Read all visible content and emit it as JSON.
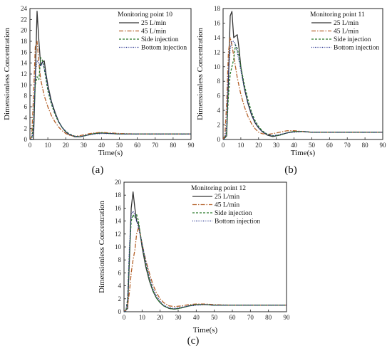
{
  "chart_data": [
    {
      "type": "line",
      "panel_label": "(a)",
      "legend_title": "Monitoring point 10",
      "xlabel": "Time(s)",
      "ylabel": "Dimensionless Concentration",
      "xlim": [
        0,
        90
      ],
      "ylim": [
        0,
        24
      ],
      "xticks": [
        0,
        10,
        20,
        30,
        40,
        50,
        60,
        70,
        80,
        90
      ],
      "yticks": [
        0,
        2,
        4,
        6,
        8,
        10,
        12,
        14,
        16,
        18,
        20,
        22,
        24
      ],
      "grid": false,
      "legend_position": "top-right",
      "series": [
        {
          "name": "25 L/min",
          "color": "#333333",
          "dash": "solid",
          "x": [
            0,
            2,
            3,
            4,
            5,
            6,
            7,
            8,
            9,
            10,
            12,
            14,
            16,
            18,
            20,
            22,
            25,
            28,
            32,
            36,
            40,
            45,
            50,
            60,
            70,
            80,
            90
          ],
          "y": [
            0,
            0,
            11,
            23.5,
            18,
            13.5,
            14.2,
            14.4,
            12,
            10,
            7,
            5,
            3.3,
            2.2,
            1.4,
            0.9,
            0.5,
            0.5,
            0.8,
            1.1,
            1.2,
            1.1,
            1.0,
            1.0,
            1.0,
            1.0,
            1.0
          ]
        },
        {
          "name": "45 L/min",
          "color": "#b5622b",
          "dash": "dashdot",
          "x": [
            0,
            1,
            2,
            3,
            4,
            5,
            6,
            7,
            8,
            10,
            12,
            14,
            16,
            18,
            20,
            22,
            25,
            28,
            32,
            36,
            40,
            45,
            50,
            60,
            70,
            80,
            90
          ],
          "y": [
            0,
            0.5,
            8,
            17,
            18,
            14,
            11,
            9.5,
            8,
            6,
            4.4,
            3.2,
            2.3,
            1.6,
            1.1,
            0.8,
            0.6,
            0.7,
            1.0,
            1.2,
            1.3,
            1.2,
            1.1,
            1.0,
            1.0,
            1.0,
            1.0
          ]
        },
        {
          "name": "Side injection",
          "color": "#2a7a2a",
          "dash": "dashed",
          "x": [
            0,
            1,
            2,
            3,
            4,
            5,
            6,
            7,
            8,
            9,
            10,
            12,
            14,
            16,
            18,
            20,
            22,
            25,
            28,
            32,
            36,
            40,
            45,
            50,
            60,
            70,
            80,
            90
          ],
          "y": [
            0,
            0,
            3,
            10,
            11.5,
            11,
            15,
            14.5,
            13,
            11,
            9,
            6.5,
            4.6,
            3.2,
            2.2,
            1.5,
            1.0,
            0.6,
            0.5,
            0.8,
            1.1,
            1.2,
            1.1,
            1.0,
            1.0,
            1.0,
            1.0,
            1.0
          ]
        },
        {
          "name": "Bottom injection",
          "color": "#1f2a8a",
          "dash": "dotted",
          "x": [
            0,
            1,
            2,
            3,
            4,
            5,
            6,
            7,
            8,
            9,
            10,
            12,
            14,
            16,
            18,
            20,
            22,
            25,
            28,
            32,
            36,
            40,
            45,
            50,
            60,
            70,
            80,
            90
          ],
          "y": [
            0,
            0,
            2,
            12,
            14.5,
            14,
            13.5,
            14.2,
            13,
            11.5,
            9.5,
            6.8,
            4.8,
            3.3,
            2.2,
            1.5,
            1.0,
            0.6,
            0.5,
            0.8,
            1.0,
            1.1,
            1.1,
            1.0,
            1.0,
            1.0,
            1.0,
            1.0
          ]
        }
      ]
    },
    {
      "type": "line",
      "panel_label": "(b)",
      "legend_title": "Monitoring point 11",
      "xlabel": "Time(s)",
      "ylabel": "Dimensionless Concentration",
      "xlim": [
        0,
        90
      ],
      "ylim": [
        0,
        18
      ],
      "xticks": [
        0,
        10,
        20,
        30,
        40,
        50,
        60,
        70,
        80,
        90
      ],
      "yticks": [
        0,
        2,
        4,
        6,
        8,
        10,
        12,
        14,
        16,
        18
      ],
      "grid": false,
      "legend_position": "top-right",
      "series": [
        {
          "name": "25 L/min",
          "color": "#333333",
          "dash": "solid",
          "x": [
            0,
            2,
            3,
            4,
            5,
            6,
            7,
            8,
            9,
            10,
            12,
            14,
            16,
            18,
            20,
            22,
            25,
            28,
            32,
            36,
            40,
            45,
            50,
            60,
            70,
            80,
            90
          ],
          "y": [
            0,
            0.5,
            8,
            17,
            17.6,
            14,
            14.2,
            14.4,
            12.5,
            10,
            7,
            5,
            3.4,
            2.3,
            1.6,
            1.1,
            0.6,
            0.4,
            0.6,
            0.9,
            1.1,
            1.1,
            1.0,
            1.0,
            1.0,
            1.0,
            1.0
          ]
        },
        {
          "name": "45 L/min",
          "color": "#b5622b",
          "dash": "dashdot",
          "x": [
            0,
            1,
            2,
            3,
            4,
            5,
            6,
            7,
            8,
            10,
            12,
            14,
            16,
            18,
            20,
            22,
            25,
            28,
            32,
            36,
            40,
            45,
            50,
            60,
            70,
            80,
            90
          ],
          "y": [
            0,
            0.5,
            5,
            12,
            14,
            13,
            11.5,
            10,
            8.5,
            6.2,
            4.5,
            3.2,
            2.2,
            1.5,
            1.0,
            0.8,
            0.7,
            0.8,
            1.0,
            1.2,
            1.2,
            1.1,
            1.0,
            1.0,
            1.0,
            1.0,
            1.0
          ]
        },
        {
          "name": "Side injection",
          "color": "#2a7a2a",
          "dash": "dashed",
          "x": [
            0,
            1,
            2,
            3,
            4,
            5,
            6,
            7,
            8,
            9,
            10,
            12,
            14,
            16,
            18,
            20,
            22,
            25,
            28,
            32,
            36,
            40,
            45,
            50,
            60,
            70,
            80,
            90
          ],
          "y": [
            0,
            0,
            1,
            6,
            9,
            10,
            11,
            13,
            12.5,
            11.5,
            10,
            7.5,
            5.5,
            3.8,
            2.6,
            1.8,
            1.2,
            0.7,
            0.5,
            0.6,
            0.9,
            1.1,
            1.1,
            1.0,
            1.0,
            1.0,
            1.0,
            1.0
          ]
        },
        {
          "name": "Bottom injection",
          "color": "#1f2a8a",
          "dash": "dotted",
          "x": [
            0,
            1,
            2,
            3,
            4,
            5,
            6,
            7,
            8,
            9,
            10,
            12,
            14,
            16,
            18,
            20,
            22,
            25,
            28,
            32,
            36,
            40,
            45,
            50,
            60,
            70,
            80,
            90
          ],
          "y": [
            0,
            0,
            2,
            9,
            12.5,
            13.5,
            13.5,
            13,
            12,
            10.8,
            9.5,
            7,
            5,
            3.5,
            2.4,
            1.6,
            1.1,
            0.7,
            0.5,
            0.7,
            0.9,
            1.0,
            1.1,
            1.0,
            1.0,
            1.0,
            1.0,
            1.0
          ]
        }
      ]
    },
    {
      "type": "line",
      "panel_label": "(c)",
      "legend_title": "Monitoring point 12",
      "xlabel": "Time(s)",
      "ylabel": "Dimensionless Concentration",
      "xlim": [
        0,
        90
      ],
      "ylim": [
        0,
        20
      ],
      "xticks": [
        0,
        10,
        20,
        30,
        40,
        50,
        60,
        70,
        80,
        90
      ],
      "yticks": [
        0,
        2,
        4,
        6,
        8,
        10,
        12,
        14,
        16,
        18,
        20
      ],
      "grid": false,
      "legend_position": "top-right",
      "series": [
        {
          "name": "25 L/min",
          "color": "#333333",
          "dash": "solid",
          "x": [
            0,
            2,
            3,
            4,
            5,
            6,
            7,
            8,
            9,
            10,
            12,
            14,
            16,
            18,
            20,
            22,
            25,
            28,
            32,
            36,
            40,
            45,
            50,
            60,
            70,
            80,
            90
          ],
          "y": [
            0,
            0.5,
            8,
            16,
            18.5,
            16,
            14,
            13.5,
            12,
            10,
            7,
            4.8,
            3.2,
            2.1,
            1.4,
            0.9,
            0.5,
            0.4,
            0.6,
            0.9,
            1.1,
            1.1,
            1.0,
            1.0,
            1.0,
            1.0,
            1.0
          ]
        },
        {
          "name": "45 L/min",
          "color": "#b5622b",
          "dash": "dashdot",
          "x": [
            0,
            1,
            2,
            3,
            4,
            5,
            6,
            7,
            8,
            9,
            10,
            12,
            14,
            16,
            18,
            20,
            22,
            25,
            28,
            32,
            36,
            40,
            45,
            50,
            60,
            70,
            80,
            90
          ],
          "y": [
            0,
            0.2,
            1,
            3,
            6,
            8,
            9.5,
            12,
            13,
            12,
            10.5,
            8,
            6,
            4.2,
            2.9,
            2.0,
            1.4,
            0.9,
            0.8,
            0.9,
            1.1,
            1.2,
            1.2,
            1.1,
            1.0,
            1.0,
            1.0,
            1.0
          ]
        },
        {
          "name": "Side injection",
          "color": "#2a7a2a",
          "dash": "dashed",
          "x": [
            0,
            1,
            2,
            3,
            4,
            5,
            6,
            7,
            8,
            9,
            10,
            12,
            14,
            16,
            18,
            20,
            22,
            25,
            28,
            32,
            36,
            40,
            45,
            50,
            60,
            70,
            80,
            90
          ],
          "y": [
            0,
            0,
            2,
            9,
            14,
            15,
            14.5,
            15,
            14,
            12,
            10.5,
            7.5,
            5,
            3.3,
            2.1,
            1.4,
            0.9,
            0.5,
            0.4,
            0.6,
            0.9,
            1.1,
            1.1,
            1.0,
            1.0,
            1.0,
            1.0,
            1.0
          ]
        },
        {
          "name": "Bottom injection",
          "color": "#1f2a8a",
          "dash": "dotted",
          "x": [
            0,
            1,
            2,
            3,
            4,
            5,
            6,
            7,
            8,
            9,
            10,
            12,
            14,
            16,
            18,
            20,
            22,
            25,
            28,
            32,
            36,
            40,
            45,
            50,
            60,
            70,
            80,
            90
          ],
          "y": [
            0,
            0,
            2,
            10,
            15,
            15.5,
            15,
            14,
            13,
            11.8,
            10.5,
            7.8,
            5.4,
            3.6,
            2.4,
            1.6,
            1.0,
            0.6,
            0.5,
            0.7,
            0.9,
            1.0,
            1.1,
            1.0,
            1.0,
            1.0,
            1.0,
            1.0
          ]
        }
      ]
    }
  ]
}
